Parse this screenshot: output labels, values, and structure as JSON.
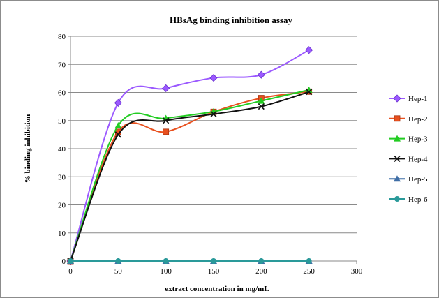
{
  "chart_data": {
    "type": "line",
    "title": "HBsAg binding inhibition assay",
    "xlabel": "extract concentration in mg/mL",
    "ylabel": "% binding inhibition",
    "xlim": [
      0,
      300
    ],
    "ylim": [
      0,
      80
    ],
    "xticks": [
      0,
      50,
      100,
      150,
      200,
      250,
      300
    ],
    "yticks": [
      0,
      10,
      20,
      30,
      40,
      50,
      60,
      70,
      80
    ],
    "x": [
      0,
      50,
      100,
      150,
      200,
      250
    ],
    "grid": "horizontal",
    "legend": "right",
    "series": [
      {
        "name": "Hep-1",
        "values": [
          0,
          56.3,
          61.5,
          65.2,
          66.3,
          75.1
        ],
        "color": "#9b59ff",
        "marker": "diamond"
      },
      {
        "name": "Hep-2",
        "values": [
          0,
          46.0,
          46.0,
          53.1,
          58.0,
          60.3
        ],
        "color": "#e8501e",
        "marker": "square"
      },
      {
        "name": "Hep-3",
        "values": [
          0,
          48.2,
          50.8,
          53.2,
          57.0,
          60.9
        ],
        "color": "#22cc22",
        "marker": "triangle"
      },
      {
        "name": "Hep-4",
        "values": [
          0,
          45.0,
          50.0,
          52.3,
          55.0,
          60.2
        ],
        "color": "#111111",
        "marker": "x"
      },
      {
        "name": "Hep-5",
        "values": [
          0,
          0,
          0,
          0,
          0,
          0
        ],
        "color": "#3f6ea6",
        "marker": "triangle"
      },
      {
        "name": "Hep-6",
        "values": [
          0,
          0,
          0,
          0,
          0,
          0
        ],
        "color": "#2a9a9a",
        "marker": "circle"
      }
    ]
  }
}
